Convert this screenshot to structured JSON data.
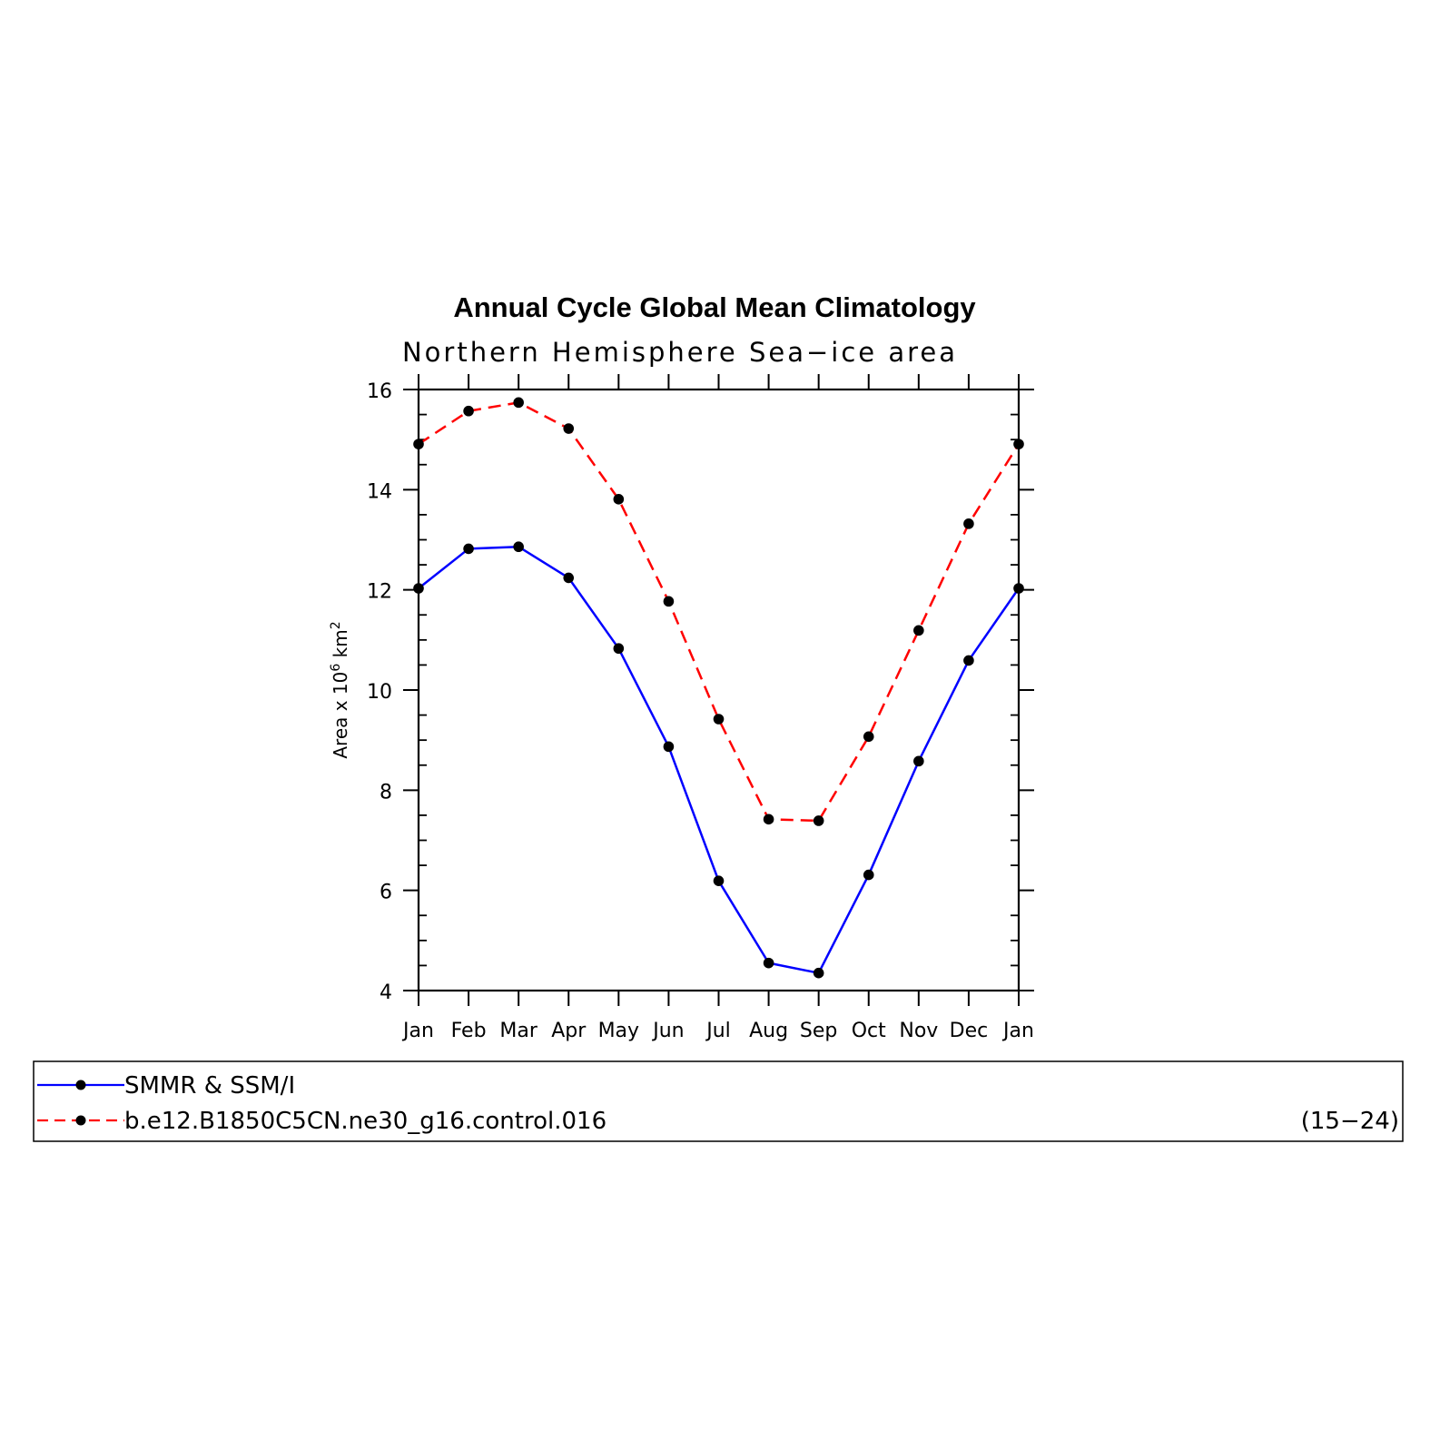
{
  "chart_data": {
    "type": "line",
    "title": "Annual Cycle Global Mean Climatology",
    "subtitle": "Northern Hemisphere Sea−ice area",
    "ylabel": {
      "base": "Area x 10",
      "exponent": "6",
      "unit": " km",
      "unit_exponent": "2"
    },
    "categories": [
      "Jan",
      "Feb",
      "Mar",
      "Apr",
      "May",
      "Jun",
      "Jul",
      "Aug",
      "Sep",
      "Oct",
      "Nov",
      "Dec",
      "Jan"
    ],
    "ylim": [
      4,
      16
    ],
    "yticks": [
      "4",
      "6",
      "8",
      "10",
      "12",
      "14",
      "16"
    ],
    "series": [
      {
        "name": "SMMR & SSM/I",
        "color": "#0000ff",
        "style": "solid",
        "values": [
          12.03,
          12.82,
          12.86,
          12.24,
          10.83,
          8.87,
          6.19,
          4.55,
          4.35,
          6.31,
          8.58,
          10.59,
          12.03
        ]
      },
      {
        "name": "b.e12.B1850C5CN.ne30_g16.control.016",
        "color": "#ff0000",
        "style": "dashed",
        "values": [
          14.91,
          15.57,
          15.74,
          15.22,
          13.81,
          11.77,
          9.42,
          7.42,
          7.39,
          9.07,
          11.19,
          13.32,
          14.91
        ]
      }
    ],
    "marker_color": "#000000",
    "legend_note": "(15−24)",
    "legend_position": "bottom",
    "grid": false
  }
}
